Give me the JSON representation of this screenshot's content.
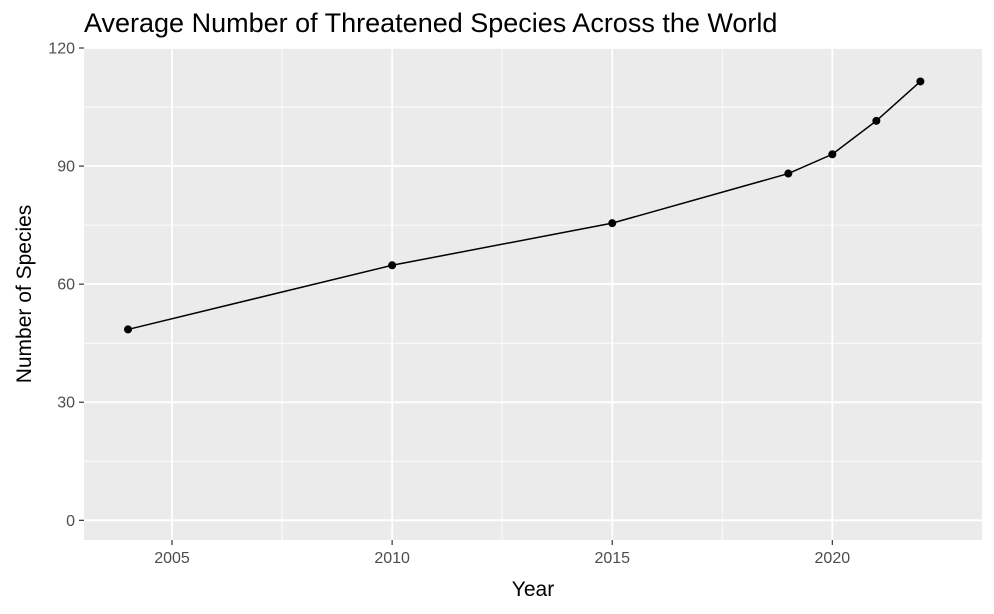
{
  "chart_data": {
    "type": "line",
    "title": "Average Number of Threatened Species Across the World",
    "xlabel": "Year",
    "ylabel": "Number of Species",
    "xlim": [
      2003,
      2023.4
    ],
    "ylim": [
      -5,
      120
    ],
    "x_ticks": [
      2005,
      2010,
      2015,
      2020
    ],
    "y_ticks": [
      0,
      30,
      60,
      90,
      120
    ],
    "grid": true,
    "legend": "none",
    "series": [
      {
        "x": [
          2004,
          2010,
          2015,
          2019,
          2020,
          2021,
          2022
        ],
        "y": [
          48.5,
          64.8,
          75.5,
          88.1,
          93.0,
          101.5,
          111.5
        ]
      }
    ],
    "colors": {
      "panel_background": "#ebebeb",
      "gridline": "#ffffff",
      "line": "#000000",
      "point": "#000000",
      "tick_text": "#4d4d4d",
      "tick_mark": "#333333"
    }
  }
}
